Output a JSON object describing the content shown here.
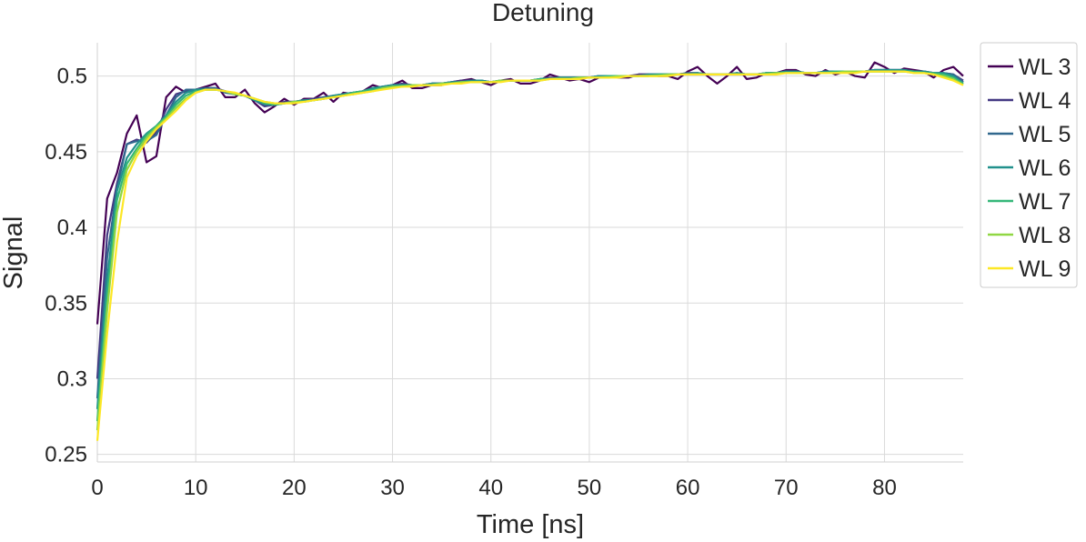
{
  "chart_data": {
    "type": "line",
    "title": "Detuning",
    "xlabel": "Time [ns]",
    "ylabel": "Signal",
    "xlim": [
      0,
      88
    ],
    "ylim": [
      0.245,
      0.522
    ],
    "xticks": [
      0,
      10,
      20,
      30,
      40,
      50,
      60,
      70,
      80
    ],
    "xtick_labels": [
      "0",
      "10",
      "20",
      "30",
      "40",
      "50",
      "60",
      "70",
      "80"
    ],
    "yticks": [
      0.25,
      0.3,
      0.35,
      0.4,
      0.45,
      0.5
    ],
    "ytick_labels": [
      "0.25",
      "0.3",
      "0.35",
      "0.4",
      "0.45",
      "0.5"
    ],
    "grid": true,
    "legend_position": "outside-right-top",
    "x": [
      0,
      1,
      2,
      3,
      4,
      5,
      6,
      7,
      8,
      9,
      10,
      11,
      12,
      13,
      14,
      15,
      16,
      17,
      18,
      19,
      20,
      21,
      22,
      23,
      24,
      25,
      26,
      27,
      28,
      29,
      30,
      31,
      32,
      33,
      34,
      35,
      36,
      37,
      38,
      39,
      40,
      41,
      42,
      43,
      44,
      45,
      46,
      47,
      48,
      49,
      50,
      51,
      52,
      53,
      54,
      55,
      56,
      57,
      58,
      59,
      60,
      61,
      62,
      63,
      64,
      65,
      66,
      67,
      68,
      69,
      70,
      71,
      72,
      73,
      74,
      75,
      76,
      77,
      78,
      79,
      80,
      81,
      82,
      83,
      84,
      85,
      86,
      87,
      88
    ],
    "series": [
      {
        "name": "WL 3",
        "color": "#440154",
        "values": [
          0.336,
          0.419,
          0.436,
          0.462,
          0.474,
          0.443,
          0.447,
          0.486,
          0.493,
          0.489,
          0.491,
          0.493,
          0.495,
          0.486,
          0.486,
          0.491,
          0.482,
          0.476,
          0.48,
          0.485,
          0.481,
          0.485,
          0.485,
          0.489,
          0.483,
          0.489,
          0.488,
          0.49,
          0.494,
          0.492,
          0.494,
          0.497,
          0.492,
          0.492,
          0.494,
          0.494,
          0.496,
          0.497,
          0.498,
          0.496,
          0.494,
          0.497,
          0.498,
          0.495,
          0.495,
          0.497,
          0.501,
          0.499,
          0.497,
          0.498,
          0.496,
          0.499,
          0.5,
          0.499,
          0.499,
          0.501,
          0.501,
          0.5,
          0.5,
          0.498,
          0.503,
          0.506,
          0.5,
          0.495,
          0.5,
          0.506,
          0.498,
          0.499,
          0.502,
          0.502,
          0.504,
          0.504,
          0.501,
          0.5,
          0.504,
          0.501,
          0.503,
          0.5,
          0.499,
          0.509,
          0.506,
          0.502,
          0.505,
          0.504,
          0.503,
          0.499,
          0.504,
          0.506,
          0.5
        ]
      },
      {
        "name": "WL 4",
        "color": "#443983",
        "values": [
          0.3,
          0.395,
          0.429,
          0.455,
          0.458,
          0.456,
          0.463,
          0.478,
          0.488,
          0.49,
          0.491,
          0.492,
          0.492,
          0.49,
          0.488,
          0.487,
          0.484,
          0.48,
          0.481,
          0.483,
          0.483,
          0.484,
          0.485,
          0.486,
          0.486,
          0.488,
          0.489,
          0.49,
          0.492,
          0.493,
          0.494,
          0.495,
          0.494,
          0.494,
          0.495,
          0.495,
          0.496,
          0.497,
          0.497,
          0.497,
          0.496,
          0.497,
          0.497,
          0.497,
          0.497,
          0.498,
          0.499,
          0.499,
          0.499,
          0.499,
          0.499,
          0.5,
          0.5,
          0.5,
          0.5,
          0.501,
          0.501,
          0.501,
          0.501,
          0.501,
          0.502,
          0.502,
          0.501,
          0.501,
          0.501,
          0.502,
          0.501,
          0.501,
          0.502,
          0.502,
          0.503,
          0.503,
          0.502,
          0.502,
          0.503,
          0.503,
          0.503,
          0.503,
          0.503,
          0.504,
          0.504,
          0.504,
          0.504,
          0.503,
          0.503,
          0.502,
          0.502,
          0.501,
          0.497
        ]
      },
      {
        "name": "WL 5",
        "color": "#31688e",
        "values": [
          0.287,
          0.38,
          0.426,
          0.455,
          0.457,
          0.457,
          0.461,
          0.474,
          0.486,
          0.491,
          0.491,
          0.492,
          0.492,
          0.489,
          0.488,
          0.487,
          0.484,
          0.481,
          0.481,
          0.482,
          0.483,
          0.484,
          0.484,
          0.486,
          0.487,
          0.488,
          0.489,
          0.49,
          0.492,
          0.493,
          0.494,
          0.494,
          0.494,
          0.494,
          0.495,
          0.495,
          0.496,
          0.496,
          0.497,
          0.497,
          0.496,
          0.497,
          0.497,
          0.497,
          0.497,
          0.498,
          0.498,
          0.499,
          0.499,
          0.499,
          0.499,
          0.5,
          0.5,
          0.5,
          0.5,
          0.5,
          0.501,
          0.501,
          0.501,
          0.501,
          0.502,
          0.502,
          0.501,
          0.501,
          0.501,
          0.502,
          0.501,
          0.501,
          0.502,
          0.502,
          0.503,
          0.503,
          0.502,
          0.502,
          0.503,
          0.503,
          0.503,
          0.503,
          0.503,
          0.504,
          0.504,
          0.504,
          0.504,
          0.503,
          0.503,
          0.502,
          0.502,
          0.501,
          0.496
        ]
      },
      {
        "name": "WL 6",
        "color": "#21918c",
        "values": [
          0.28,
          0.365,
          0.424,
          0.446,
          0.455,
          0.462,
          0.467,
          0.474,
          0.483,
          0.489,
          0.491,
          0.491,
          0.491,
          0.49,
          0.488,
          0.487,
          0.484,
          0.482,
          0.481,
          0.482,
          0.483,
          0.484,
          0.484,
          0.485,
          0.487,
          0.488,
          0.489,
          0.49,
          0.492,
          0.493,
          0.494,
          0.494,
          0.494,
          0.494,
          0.495,
          0.495,
          0.496,
          0.496,
          0.497,
          0.497,
          0.496,
          0.497,
          0.497,
          0.497,
          0.497,
          0.498,
          0.498,
          0.499,
          0.499,
          0.499,
          0.499,
          0.5,
          0.5,
          0.5,
          0.5,
          0.5,
          0.501,
          0.501,
          0.501,
          0.501,
          0.501,
          0.502,
          0.501,
          0.501,
          0.501,
          0.502,
          0.501,
          0.501,
          0.502,
          0.502,
          0.503,
          0.503,
          0.502,
          0.502,
          0.503,
          0.503,
          0.503,
          0.503,
          0.503,
          0.504,
          0.504,
          0.504,
          0.504,
          0.503,
          0.503,
          0.502,
          0.502,
          0.5,
          0.495
        ]
      },
      {
        "name": "WL 7",
        "color": "#35b779",
        "values": [
          0.272,
          0.355,
          0.418,
          0.442,
          0.452,
          0.461,
          0.467,
          0.473,
          0.481,
          0.487,
          0.49,
          0.491,
          0.491,
          0.49,
          0.488,
          0.487,
          0.485,
          0.482,
          0.481,
          0.482,
          0.483,
          0.483,
          0.484,
          0.485,
          0.486,
          0.487,
          0.489,
          0.49,
          0.491,
          0.492,
          0.493,
          0.494,
          0.494,
          0.494,
          0.494,
          0.495,
          0.495,
          0.496,
          0.496,
          0.496,
          0.496,
          0.497,
          0.497,
          0.497,
          0.497,
          0.498,
          0.498,
          0.498,
          0.498,
          0.499,
          0.499,
          0.499,
          0.5,
          0.5,
          0.5,
          0.5,
          0.5,
          0.501,
          0.501,
          0.501,
          0.501,
          0.501,
          0.501,
          0.501,
          0.501,
          0.501,
          0.501,
          0.501,
          0.502,
          0.502,
          0.502,
          0.502,
          0.502,
          0.502,
          0.502,
          0.503,
          0.503,
          0.503,
          0.503,
          0.503,
          0.503,
          0.503,
          0.503,
          0.503,
          0.502,
          0.502,
          0.501,
          0.499,
          0.495
        ]
      },
      {
        "name": "WL 8",
        "color": "#90d743",
        "values": [
          0.266,
          0.345,
          0.41,
          0.438,
          0.45,
          0.459,
          0.466,
          0.472,
          0.479,
          0.485,
          0.489,
          0.491,
          0.491,
          0.49,
          0.488,
          0.487,
          0.485,
          0.483,
          0.482,
          0.482,
          0.483,
          0.483,
          0.484,
          0.485,
          0.486,
          0.487,
          0.488,
          0.489,
          0.49,
          0.492,
          0.493,
          0.493,
          0.494,
          0.494,
          0.494,
          0.495,
          0.495,
          0.496,
          0.496,
          0.496,
          0.496,
          0.497,
          0.497,
          0.497,
          0.497,
          0.497,
          0.498,
          0.498,
          0.498,
          0.499,
          0.499,
          0.499,
          0.499,
          0.5,
          0.5,
          0.5,
          0.5,
          0.5,
          0.501,
          0.501,
          0.501,
          0.501,
          0.501,
          0.501,
          0.501,
          0.501,
          0.501,
          0.501,
          0.501,
          0.502,
          0.502,
          0.502,
          0.502,
          0.502,
          0.502,
          0.502,
          0.503,
          0.503,
          0.503,
          0.503,
          0.503,
          0.503,
          0.503,
          0.502,
          0.502,
          0.501,
          0.5,
          0.498,
          0.494
        ]
      },
      {
        "name": "WL 9",
        "color": "#fde725",
        "values": [
          0.259,
          0.33,
          0.39,
          0.433,
          0.447,
          0.457,
          0.465,
          0.471,
          0.477,
          0.484,
          0.489,
          0.491,
          0.491,
          0.49,
          0.489,
          0.487,
          0.485,
          0.483,
          0.482,
          0.482,
          0.482,
          0.483,
          0.484,
          0.485,
          0.486,
          0.487,
          0.488,
          0.489,
          0.49,
          0.491,
          0.492,
          0.493,
          0.493,
          0.494,
          0.494,
          0.494,
          0.495,
          0.495,
          0.496,
          0.496,
          0.496,
          0.496,
          0.497,
          0.497,
          0.497,
          0.497,
          0.498,
          0.498,
          0.498,
          0.498,
          0.499,
          0.499,
          0.499,
          0.499,
          0.5,
          0.5,
          0.5,
          0.5,
          0.5,
          0.501,
          0.501,
          0.501,
          0.501,
          0.501,
          0.501,
          0.501,
          0.501,
          0.501,
          0.501,
          0.501,
          0.502,
          0.502,
          0.502,
          0.502,
          0.502,
          0.502,
          0.502,
          0.502,
          0.503,
          0.503,
          0.503,
          0.503,
          0.503,
          0.502,
          0.502,
          0.501,
          0.499,
          0.497,
          0.494
        ]
      }
    ]
  },
  "colors": {
    "grid": "#dadada",
    "axis": "#d0d0d0",
    "text": "#262626",
    "legend_border": "#cccccc"
  }
}
